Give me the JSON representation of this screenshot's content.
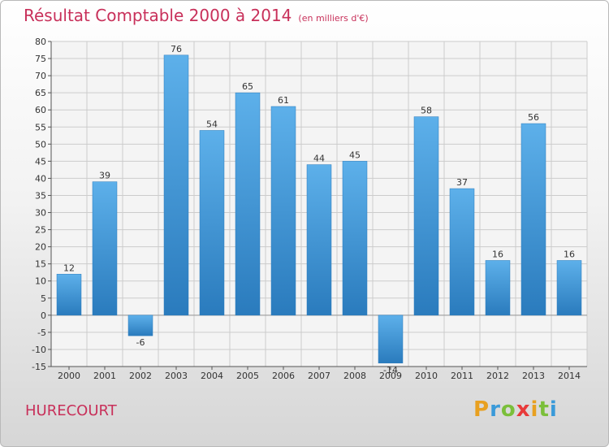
{
  "header": {
    "title": "Résultat Comptable 2000 à 2014",
    "subtitle": "(en milliers d'€)"
  },
  "commune": "HURECOURT",
  "logo": {
    "text": "Proxiti",
    "colors": [
      "#e8a020",
      "#3a9ad9",
      "#7bbf3a",
      "#e83a3a",
      "#e8a020",
      "#7bbf3a",
      "#3a9ad9"
    ]
  },
  "colors": {
    "bar_top": "#5db0ea",
    "bar_bottom": "#2a7bbd",
    "title": "#c8305a",
    "grid": "#cccccc"
  },
  "chart_data": {
    "type": "bar",
    "title": "Résultat Comptable 2000 à 2014",
    "subtitle": "(en milliers d'€)",
    "categories": [
      "2000",
      "2001",
      "2002",
      "2003",
      "2004",
      "2005",
      "2006",
      "2007",
      "2008",
      "2009",
      "2010",
      "2011",
      "2012",
      "2013",
      "2014"
    ],
    "values": [
      12,
      39,
      -6,
      76,
      54,
      65,
      61,
      44,
      45,
      -14,
      58,
      37,
      16,
      56,
      16
    ],
    "ylim": [
      -15,
      80
    ],
    "yticks": [
      -15,
      -10,
      -5,
      0,
      5,
      10,
      15,
      20,
      25,
      30,
      35,
      40,
      45,
      50,
      55,
      60,
      65,
      70,
      75,
      80
    ],
    "xlabel": "",
    "ylabel": "",
    "grid": true
  }
}
